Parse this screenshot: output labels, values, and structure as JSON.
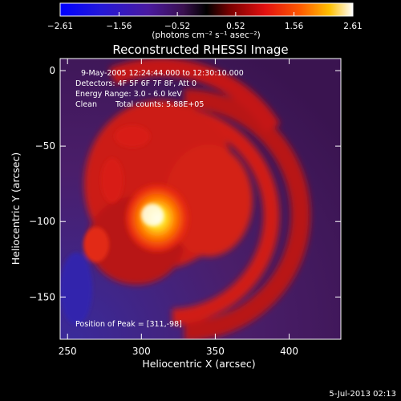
{
  "chart_data": {
    "type": "heatmap",
    "title": "Reconstructed RHESSI Image",
    "xlabel": "Heliocentric X (arcsec)",
    "ylabel": "Heliocentric Y (arcsec)",
    "xlim": [
      245,
      435
    ],
    "ylim": [
      -178,
      8
    ],
    "xticks": [
      250,
      300,
      350,
      400
    ],
    "yticks": [
      0,
      -50,
      -100,
      -150
    ],
    "colorbar": {
      "range": [
        -2.61,
        2.61
      ],
      "ticks": [
        "-2.61",
        "-1.56",
        "-0.52",
        "0.52",
        "1.56",
        "2.61"
      ],
      "unit_label": "(photons cm⁻² s⁻¹ asec⁻²)"
    },
    "annotations": {
      "time_range": "9-May-2005 12:24:44.000 to 12:30:10.000",
      "detectors": "Detectors: 4F 5F 6F 7F 8F, Att 0",
      "energy": "Energy Range: 3.0 - 6.0 keV",
      "algorithm": "Clean",
      "total_counts": "Total counts: 5.88E+05",
      "peak_position": "Position of Peak = [311,-98]"
    },
    "peak": {
      "x": 311,
      "y": -98,
      "value": 2.61
    },
    "grid": false,
    "legend": "none"
  },
  "footer": {
    "timestamp": "5-Jul-2013 02:13"
  },
  "colors": {
    "background": "#000000",
    "text": "#ffffff"
  }
}
